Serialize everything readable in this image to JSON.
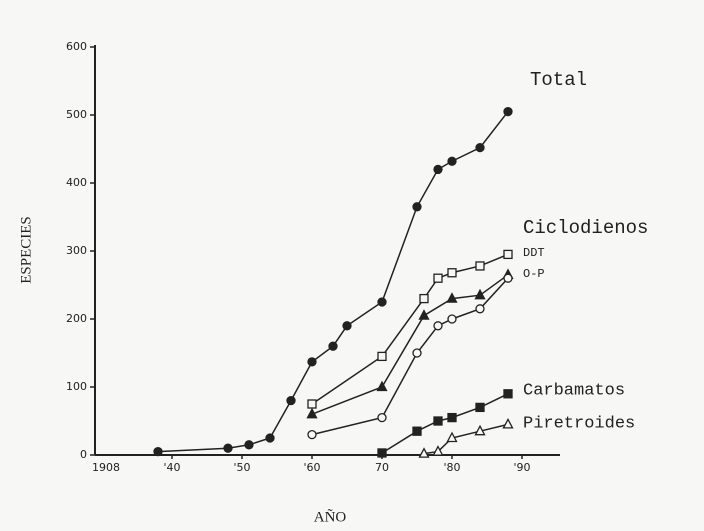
{
  "chart_data": {
    "type": "line",
    "x_label": "AÑO",
    "y_label": "ESPECIES",
    "x_start_label": "1908",
    "xlim": [
      1929,
      1995
    ],
    "ylim": [
      0,
      600
    ],
    "xticks": [
      {
        "value": 1940,
        "label": "'40"
      },
      {
        "value": 1950,
        "label": "'50"
      },
      {
        "value": 1960,
        "label": "'60"
      },
      {
        "value": 1970,
        "label": "70"
      },
      {
        "value": 1980,
        "label": "'80"
      },
      {
        "value": 1990,
        "label": "'90"
      }
    ],
    "yticks": [
      0,
      100,
      200,
      300,
      400,
      500,
      600
    ],
    "series": [
      {
        "name": "Total",
        "color": "#222",
        "marker": "circle-filled",
        "x": [
          1938,
          1948,
          1951,
          1954,
          1957,
          1960,
          1963,
          1965,
          1970,
          1975,
          1978,
          1980,
          1984,
          1988
        ],
        "values": [
          5,
          10,
          15,
          25,
          80,
          137,
          160,
          190,
          225,
          365,
          420,
          432,
          452,
          505
        ]
      },
      {
        "name": "Ciclodienos",
        "color": "#222",
        "marker": "square-open",
        "x": [
          1960,
          1970,
          1976,
          1978,
          1980,
          1984,
          1988
        ],
        "values": [
          75,
          145,
          230,
          260,
          268,
          278,
          295
        ]
      },
      {
        "name": "DDT",
        "color": "#222",
        "marker": "triangle-filled",
        "x": [
          1960,
          1970,
          1976,
          1980,
          1984,
          1988
        ],
        "values": [
          60,
          100,
          205,
          230,
          235,
          265
        ]
      },
      {
        "name": "O-P",
        "color": "#222",
        "marker": "circle-open",
        "x": [
          1960,
          1970,
          1975,
          1978,
          1980,
          1984,
          1988
        ],
        "values": [
          30,
          55,
          150,
          190,
          200,
          215,
          260
        ]
      },
      {
        "name": "Carbamatos",
        "color": "#222",
        "marker": "square-filled",
        "x": [
          1970,
          1975,
          1978,
          1980,
          1984,
          1988
        ],
        "values": [
          3,
          35,
          50,
          55,
          70,
          90
        ]
      },
      {
        "name": "Piretroides",
        "color": "#222",
        "marker": "triangle-open",
        "x": [
          1976,
          1978,
          1980,
          1984,
          1988
        ],
        "values": [
          2,
          5,
          25,
          35,
          45
        ]
      }
    ]
  }
}
